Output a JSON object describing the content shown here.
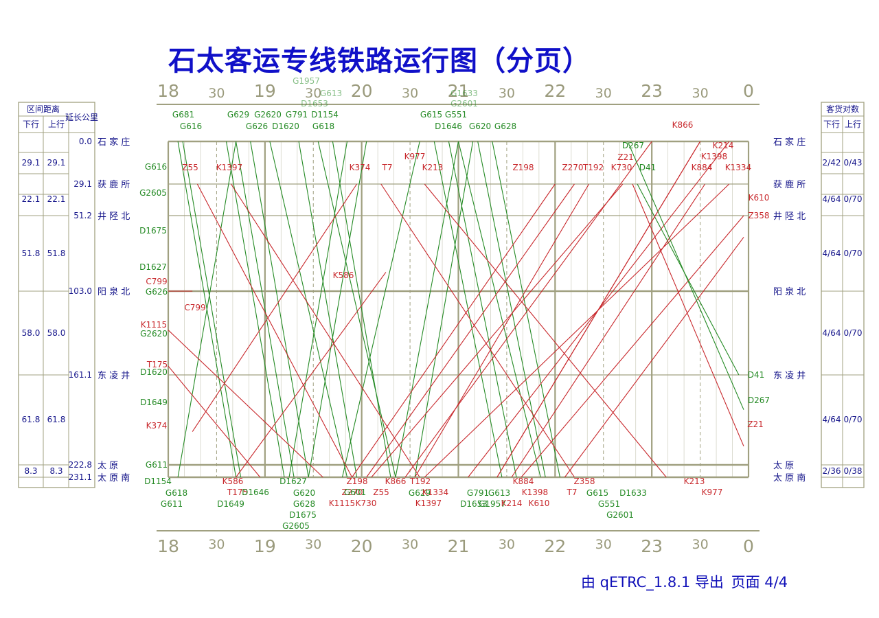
{
  "title": "石太客运专线铁路运行图（分页）",
  "footer": {
    "exporter": "由 qETRC_1.8.1 导出",
    "page": "页面 4/4"
  },
  "colors": {
    "down": "#c8282c",
    "up": "#248a24",
    "grid": "#a0a080",
    "text": "#14148a",
    "title": "#1010c8"
  },
  "left_table": {
    "header_distance": "区间距离",
    "header_down": "下行",
    "header_up": "上行",
    "header_km": "延长公里",
    "intervals": [
      {
        "down": "29.1",
        "up": "29.1"
      },
      {
        "down": "22.1",
        "up": "22.1"
      },
      {
        "down": "51.8",
        "up": "51.8"
      },
      {
        "down": "58.0",
        "up": "58.0"
      },
      {
        "down": "61.8",
        "up": "61.8"
      },
      {
        "down": "8.3",
        "up": "8.3"
      }
    ]
  },
  "right_table": {
    "header": "客货对数",
    "header_down": "下行",
    "header_up": "上行",
    "intervals": [
      {
        "down": "2/42",
        "up": "0/43"
      },
      {
        "down": "4/64",
        "up": "0/70"
      },
      {
        "down": "4/64",
        "up": "0/70"
      },
      {
        "down": "4/64",
        "up": "0/70"
      },
      {
        "down": "4/64",
        "up": "0/70"
      },
      {
        "down": "2/36",
        "up": "0/38"
      }
    ]
  },
  "chart_data": {
    "type": "line",
    "x_axis": {
      "unit": "hour",
      "range": [
        18,
        24
      ],
      "hour_labels": [
        "18",
        "19",
        "20",
        "21",
        "22",
        "23",
        "0"
      ],
      "half_label": "30"
    },
    "stations": [
      {
        "name": "石 家 庄",
        "km": 0.0,
        "km_label": "0.0"
      },
      {
        "name": "获 鹿 所",
        "km": 29.1,
        "km_label": "29.1"
      },
      {
        "name": "井 陉 北",
        "km": 51.2,
        "km_label": "51.2"
      },
      {
        "name": "阳 泉 北",
        "km": 103.0,
        "km_label": "103.0"
      },
      {
        "name": "东 凌 井",
        "km": 161.1,
        "km_label": "161.1"
      },
      {
        "name": "太 原",
        "km": 222.8,
        "km_label": "222.8"
      },
      {
        "name": "太 原 南",
        "km": 231.1,
        "km_label": "231.1"
      }
    ],
    "grid": true,
    "series": [
      {
        "name": "G681",
        "dir": "up",
        "x": [
          18.1,
          18.7
        ],
        "y": [
          0.0,
          231.1
        ]
      },
      {
        "name": "G616",
        "dir": "up",
        "x": [
          18.15,
          18.75
        ],
        "y": [
          0.0,
          231.1
        ]
      },
      {
        "name": "G629",
        "dir": "up",
        "x": [
          18.6,
          19.2
        ],
        "y": [
          0.0,
          231.1
        ]
      },
      {
        "name": "G626",
        "dir": "up",
        "x": [
          18.7,
          19.3
        ],
        "y": [
          0.0,
          231.1
        ]
      },
      {
        "name": "G2620",
        "dir": "up",
        "x": [
          18.85,
          19.45
        ],
        "y": [
          0.0,
          231.1
        ]
      },
      {
        "name": "D1620",
        "dir": "up",
        "x": [
          19.05,
          19.85
        ],
        "y": [
          0.0,
          231.1
        ]
      },
      {
        "name": "G791",
        "dir": "up",
        "x": [
          19.35,
          19.95
        ],
        "y": [
          0.0,
          231.1
        ]
      },
      {
        "name": "D1154",
        "dir": "up",
        "x": [
          19.55,
          20.35
        ],
        "y": [
          0.0,
          231.1
        ]
      },
      {
        "name": "G618",
        "dir": "up",
        "x": [
          19.7,
          20.3
        ],
        "y": [
          0.0,
          231.1
        ]
      },
      {
        "name": "G615",
        "dir": "up",
        "x": [
          20.75,
          21.45
        ],
        "y": [
          0.0,
          231.1
        ]
      },
      {
        "name": "G551",
        "dir": "up",
        "x": [
          20.9,
          21.6
        ],
        "y": [
          0.0,
          231.1
        ]
      },
      {
        "name": "D1646",
        "dir": "up",
        "x": [
          21.0,
          21.85
        ],
        "y": [
          0.0,
          231.1
        ]
      },
      {
        "name": "G620",
        "dir": "up",
        "x": [
          21.2,
          21.9
        ],
        "y": [
          0.0,
          231.1
        ]
      },
      {
        "name": "G628",
        "dir": "up",
        "x": [
          21.35,
          22.05
        ],
        "y": [
          0.0,
          231.1
        ]
      },
      {
        "name": "G611",
        "dir": "down",
        "x": [
          18.1,
          18.7
        ],
        "y": [
          231.1,
          0.0
        ]
      },
      {
        "name": "G1957",
        "dir": "down",
        "x": [
          19.25,
          19.85
        ],
        "y": [
          231.1,
          0.0
        ]
      },
      {
        "name": "G613",
        "dir": "down",
        "x": [
          19.45,
          20.05
        ],
        "y": [
          231.1,
          0.0
        ]
      },
      {
        "name": "D1653",
        "dir": "down",
        "x": [
          19.8,
          20.6
        ],
        "y": [
          231.1,
          0.0
        ]
      },
      {
        "name": "G1633",
        "dir": "down",
        "x": [
          20.35,
          21.0
        ],
        "y": [
          231.1,
          0.0
        ]
      },
      {
        "name": "G2601",
        "dir": "down",
        "x": [
          20.55,
          21.15
        ],
        "y": [
          231.1,
          0.0
        ]
      },
      {
        "name": "Z55",
        "dir": "down",
        "x": [
          18.3,
          19.9
        ],
        "y": [
          29.1,
          231.1
        ]
      },
      {
        "name": "K1397",
        "dir": "down",
        "x": [
          18.65,
          20.6
        ],
        "y": [
          29.1,
          231.1
        ]
      },
      {
        "name": "K374",
        "dir": "up",
        "x": [
          18.25,
          19.95
        ],
        "y": [
          200.0,
          29.1
        ]
      },
      {
        "name": "T7",
        "dir": "down",
        "x": [
          20.2,
          22.2
        ],
        "y": [
          29.1,
          231.1
        ]
      },
      {
        "name": "K977",
        "dir": "up",
        "x": [
          21.1,
          23.8
        ],
        "y": [
          231.1,
          0.0
        ]
      },
      {
        "name": "K213",
        "dir": "down",
        "x": [
          20.65,
          23.15
        ],
        "y": [
          29.1,
          231.1
        ]
      },
      {
        "name": "Z198",
        "dir": "up",
        "x": [
          19.9,
          22.0
        ],
        "y": [
          231.1,
          29.1
        ]
      },
      {
        "name": "Z270",
        "dir": "up",
        "x": [
          20.05,
          22.2
        ],
        "y": [
          231.1,
          29.1
        ]
      },
      {
        "name": "T192",
        "dir": "up",
        "x": [
          20.55,
          22.35
        ],
        "y": [
          231.1,
          29.1
        ]
      },
      {
        "name": "K730",
        "dir": "up",
        "x": [
          20.1,
          22.7
        ],
        "y": [
          231.1,
          29.1
        ]
      },
      {
        "name": "D41",
        "dir": "down",
        "x": [
          22.85,
          23.9
        ],
        "y": [
          29.1,
          161.1
        ]
      },
      {
        "name": "K884",
        "dir": "up",
        "x": [
          21.55,
          23.55
        ],
        "y": [
          231.1,
          29.1
        ]
      },
      {
        "name": "K1334",
        "dir": "up",
        "x": [
          20.65,
          23.8
        ],
        "y": [
          231.1,
          29.1
        ]
      },
      {
        "name": "K866",
        "dir": "up",
        "x": [
          20.45,
          23.0
        ],
        "y": [
          231.1,
          0.0
        ]
      },
      {
        "name": "K214",
        "dir": "down",
        "x": [
          23.5,
          21.4
        ],
        "y": [
          0.0,
          231.1
        ]
      },
      {
        "name": "K1398",
        "dir": "up",
        "x": [
          21.4,
          23.5
        ],
        "y": [
          231.1,
          0.0
        ]
      },
      {
        "name": "K610",
        "dir": "up",
        "x": [
          21.65,
          23.95
        ],
        "y": [
          231.1,
          51.2
        ]
      },
      {
        "name": "Z358",
        "dir": "up",
        "x": [
          22.1,
          23.95
        ],
        "y": [
          231.1,
          66.0
        ]
      },
      {
        "name": "D267",
        "dir": "down",
        "x": [
          22.75,
          23.95
        ],
        "y": [
          0.0,
          185.0
        ]
      },
      {
        "name": "Z21",
        "dir": "down",
        "x": [
          22.8,
          23.95
        ],
        "y": [
          29.1,
          210.0
        ]
      },
      {
        "name": "K586",
        "dir": "up",
        "x": [
          18.7,
          20.25
        ],
        "y": [
          231.1,
          90.0
        ]
      },
      {
        "name": "K1115",
        "dir": "down",
        "x": [
          18.0,
          19.6
        ],
        "y": [
          130.0,
          231.1
        ]
      },
      {
        "name": "T175",
        "dir": "down",
        "x": [
          18.0,
          18.95
        ],
        "y": [
          155.0,
          231.1
        ]
      },
      {
        "name": "C799",
        "dir": "down",
        "x": [
          18.0,
          18.25
        ],
        "y": [
          103.0,
          103.0
        ]
      }
    ],
    "labels_top": [
      "G681",
      "G616",
      "G629",
      "G626",
      "G2620",
      "D1620",
      "G791",
      "D1154",
      "G618",
      "G615",
      "G551",
      "D1646",
      "G620",
      "G628",
      "G1957",
      "D1653",
      "G613",
      "G1633",
      "G2601",
      "K977",
      "K866",
      "D267",
      "Z21",
      "K214",
      "K1398",
      "Z55",
      "K1397",
      "K374",
      "T7",
      "K213",
      "Z198",
      "Z270",
      "T192",
      "K730",
      "D41",
      "K884",
      "K1334"
    ],
    "labels_bottom": [
      "D1154",
      "G618",
      "G611",
      "K586",
      "T175",
      "D1646",
      "D1649",
      "D1627",
      "G620",
      "G628",
      "D1675",
      "G2605",
      "Z198",
      "Z270",
      "G601",
      "K1115",
      "K730",
      "Z55",
      "K866",
      "T192",
      "G629",
      "K1334",
      "K1397",
      "G791",
      "G613",
      "D1653",
      "G1957",
      "K214",
      "K884",
      "K1398",
      "K610",
      "Z358",
      "T7",
      "G615",
      "G551",
      "G2601",
      "D1633",
      "K213",
      "K977"
    ],
    "labels_left": [
      "G616",
      "Z55",
      "G2605",
      "D1675",
      "D1627",
      "C799",
      "G626",
      "C799",
      "K1115",
      "G2620",
      "T175",
      "D1620",
      "D1649",
      "K374",
      "G611",
      "K586"
    ],
    "labels_right": [
      "K610",
      "Z358",
      "D41",
      "D267",
      "Z21"
    ]
  }
}
